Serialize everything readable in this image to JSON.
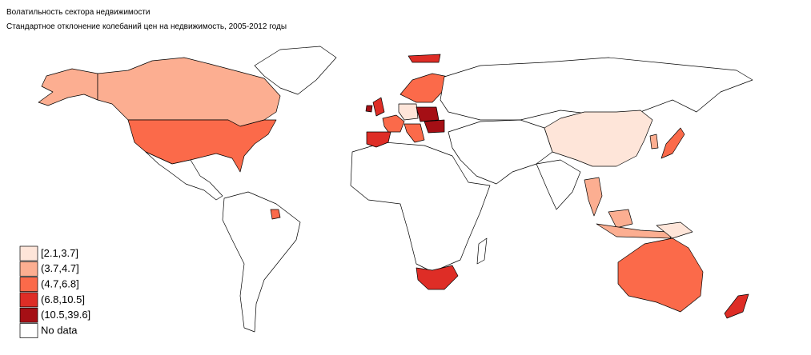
{
  "map": {
    "title": "Волатильность сектора недвижимости",
    "subtitle": "Стандартное отклонение колебаний цен на недвижимость, 2005-2012 годы",
    "legend": [
      {
        "label": "[2.1,3.7]",
        "color": "#fee5d9"
      },
      {
        "label": "(3.7,4.7]",
        "color": "#fcae91"
      },
      {
        "label": "(4.7,6.8]",
        "color": "#fb6a4a"
      },
      {
        "label": "(6.8,10.5]",
        "color": "#de2d26"
      },
      {
        "label": "(10.5,39.6]",
        "color": "#a50f15"
      },
      {
        "label": "No data",
        "color": "#ffffff"
      }
    ]
  }
}
